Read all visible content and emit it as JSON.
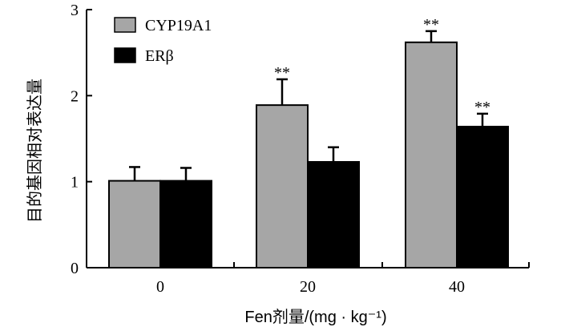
{
  "chart_data": {
    "type": "bar",
    "categories": [
      "0",
      "20",
      "40"
    ],
    "series": [
      {
        "name": "CYP19A1",
        "values": [
          1.01,
          1.89,
          2.62
        ],
        "errors": [
          0.16,
          0.3,
          0.13
        ],
        "significance": [
          "",
          "**",
          "**"
        ],
        "color": "#a6a6a6"
      },
      {
        "name": "ERβ",
        "values": [
          1.01,
          1.23,
          1.64
        ],
        "errors": [
          0.15,
          0.17,
          0.15
        ],
        "significance": [
          "",
          "",
          "**"
        ],
        "color": "#000000"
      }
    ],
    "xlabel": "Fen剂量/(mg · kg⁻¹)",
    "ylabel": "目的基因相对表达量",
    "ylim": [
      0,
      3
    ],
    "yticks": [
      "0",
      "1",
      "2",
      "3"
    ],
    "grid": false,
    "legend": "top-left"
  }
}
